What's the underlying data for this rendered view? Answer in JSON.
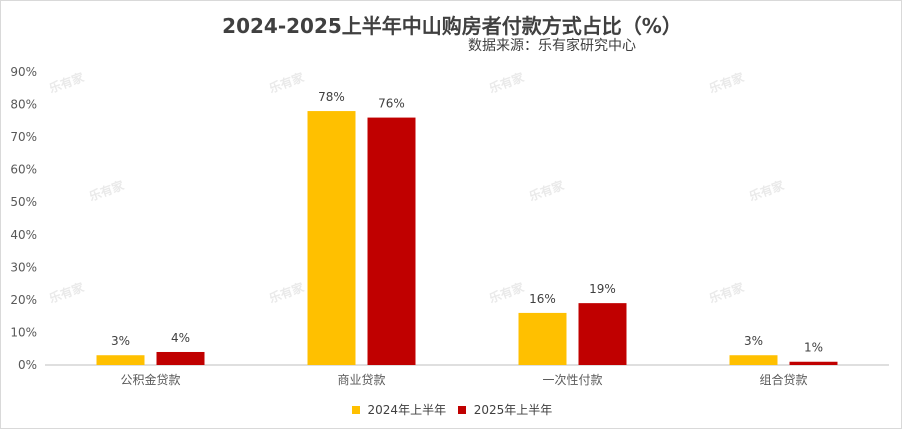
{
  "chart_data": {
    "type": "bar",
    "title": "2024-2025上半年中山购房者付款方式占比（%）",
    "subtitle": "数据来源：乐有家研究中心",
    "categories": [
      "公积金贷款",
      "商业贷款",
      "一次性付款",
      "组合贷款"
    ],
    "series": [
      {
        "name": "2024年上半年",
        "values": [
          3,
          78,
          16,
          3
        ],
        "labels": [
          "3%",
          "78%",
          "16%",
          "3%"
        ],
        "color": "#FFC000"
      },
      {
        "name": "2025年上半年",
        "values": [
          4,
          76,
          19,
          1
        ],
        "labels": [
          "4%",
          "76%",
          "19%",
          "1%"
        ],
        "color": "#C00000"
      }
    ],
    "yticks": [
      "0%",
      "10%",
      "20%",
      "30%",
      "40%",
      "50%",
      "60%",
      "70%",
      "80%",
      "90%"
    ],
    "ylim": [
      0,
      90
    ],
    "grid": false,
    "legend": "bottom",
    "watermark": "乐有家"
  }
}
